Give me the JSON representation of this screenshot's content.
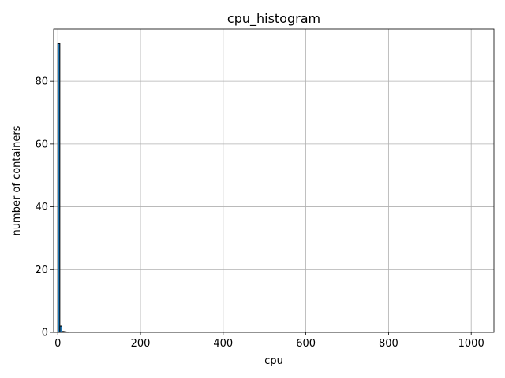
{
  "chart_data": {
    "type": "bar",
    "title": "cpu_histogram",
    "xlabel": "cpu",
    "ylabel": "number of containers",
    "xlim": [
      -10,
      1055
    ],
    "ylim": [
      0,
      96.6
    ],
    "xticks": [
      0,
      200,
      400,
      600,
      800,
      1000
    ],
    "yticks": [
      0,
      20,
      40,
      60,
      80
    ],
    "grid": true,
    "bar_color": "#1f77b4",
    "bar_edge_color": "#000000",
    "bins": [
      {
        "x0": 0,
        "x1": 5,
        "count": 92
      },
      {
        "x0": 5,
        "x1": 10,
        "count": 2
      },
      {
        "x0": 10,
        "x1": 15,
        "count": 0.3
      },
      {
        "x0": 15,
        "x1": 20,
        "count": 0.2
      },
      {
        "x0": 20,
        "x1": 25,
        "count": 0.1
      }
    ]
  }
}
